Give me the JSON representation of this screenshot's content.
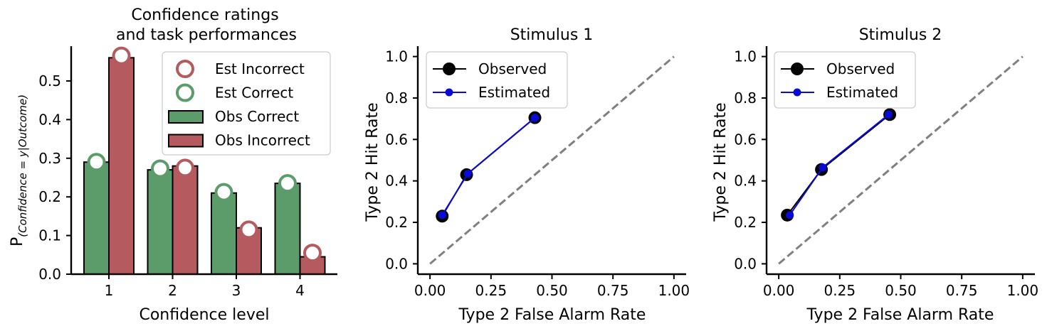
{
  "colors": {
    "correct": "#5c9c6b",
    "incorrect": "#b55a5f",
    "observed": "#000000",
    "estimated": "#0a0ad8",
    "chance": "#808080"
  },
  "chart_data": [
    {
      "type": "bar",
      "title_line1": "Confidence ratings",
      "title_line2": "and task performances",
      "xlabel": "Confidence level",
      "ylabel_main": "P",
      "ylabel_sub": "(Confidence = y|Outcome)",
      "categories": [
        "1",
        "2",
        "3",
        "4"
      ],
      "ylim": [
        0,
        0.59
      ],
      "yticks": [
        "0.0",
        "0.1",
        "0.2",
        "0.3",
        "0.4",
        "0.5"
      ],
      "series": [
        {
          "name": "Obs Correct",
          "kind": "bar",
          "values": [
            0.29,
            0.27,
            0.21,
            0.235
          ]
        },
        {
          "name": "Obs Incorrect",
          "kind": "bar",
          "values": [
            0.56,
            0.28,
            0.12,
            0.045
          ]
        },
        {
          "name": "Est Correct",
          "kind": "marker",
          "values": [
            0.29,
            0.273,
            0.212,
            0.235
          ]
        },
        {
          "name": "Est Incorrect",
          "kind": "marker",
          "values": [
            0.565,
            0.275,
            0.115,
            0.055
          ]
        }
      ],
      "legend": {
        "position": "upper right",
        "items": [
          "Est Incorrect",
          "Est Correct",
          "Obs Correct",
          "Obs Incorrect"
        ]
      }
    },
    {
      "type": "line",
      "title": "Stimulus 1",
      "xlabel": "Type 2 False Alarm Rate",
      "ylabel": "Type 2 Hit Rate",
      "xlim": [
        -0.05,
        1.05
      ],
      "ylim": [
        -0.05,
        1.05
      ],
      "xticks": [
        "0.00",
        "0.25",
        "0.50",
        "0.75",
        "1.00"
      ],
      "yticks": [
        "0.0",
        "0.2",
        "0.4",
        "0.6",
        "0.8",
        "1.0"
      ],
      "series": [
        {
          "name": "Observed",
          "x": [
            0.05,
            0.15,
            0.43
          ],
          "y": [
            0.23,
            0.43,
            0.705
          ]
        },
        {
          "name": "Estimated",
          "x": [
            0.05,
            0.155,
            0.43
          ],
          "y": [
            0.235,
            0.435,
            0.705
          ]
        }
      ],
      "chance_line": {
        "x": [
          0,
          1
        ],
        "y": [
          0,
          1
        ],
        "style": "dashed"
      },
      "legend": {
        "position": "upper left",
        "items": [
          "Observed",
          "Estimated"
        ]
      }
    },
    {
      "type": "line",
      "title": "Stimulus 2",
      "xlabel": "Type 2 False Alarm Rate",
      "ylabel": "Type 2 Hit Rate",
      "xlim": [
        -0.05,
        1.05
      ],
      "ylim": [
        -0.05,
        1.05
      ],
      "xticks": [
        "0.00",
        "0.25",
        "0.50",
        "0.75",
        "1.00"
      ],
      "yticks": [
        "0.0",
        "0.2",
        "0.4",
        "0.6",
        "0.8",
        "1.0"
      ],
      "series": [
        {
          "name": "Observed",
          "x": [
            0.035,
            0.175,
            0.455
          ],
          "y": [
            0.235,
            0.455,
            0.72
          ]
        },
        {
          "name": "Estimated",
          "x": [
            0.045,
            0.18,
            0.45
          ],
          "y": [
            0.235,
            0.465,
            0.72
          ]
        }
      ],
      "chance_line": {
        "x": [
          0,
          1
        ],
        "y": [
          0,
          1
        ],
        "style": "dashed"
      },
      "legend": {
        "position": "upper left",
        "items": [
          "Observed",
          "Estimated"
        ]
      }
    }
  ]
}
